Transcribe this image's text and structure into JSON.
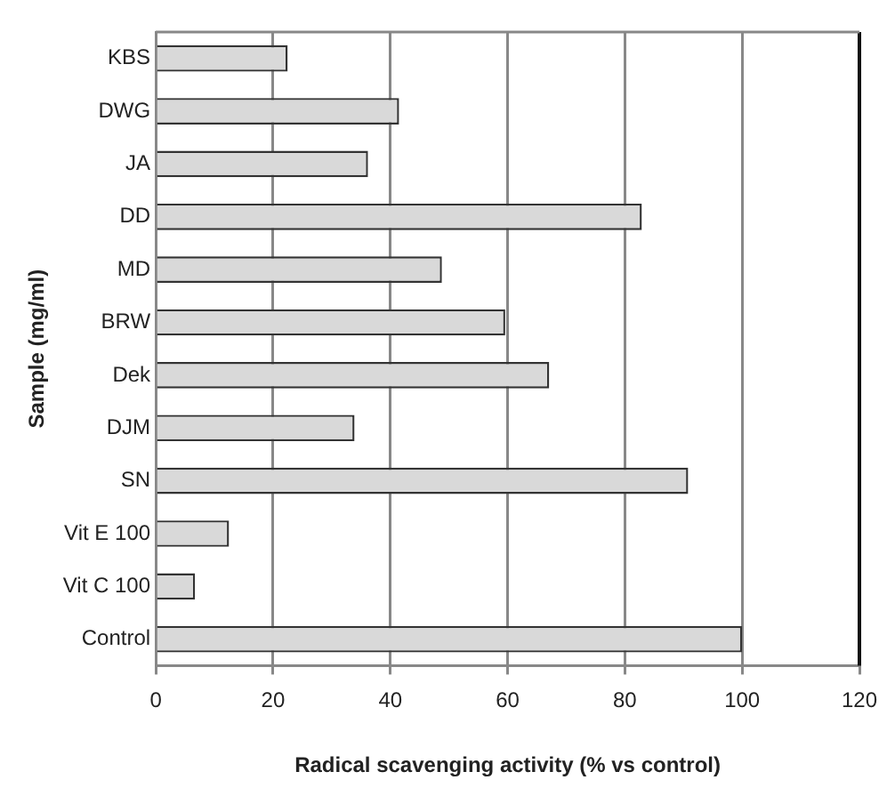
{
  "chart_data": {
    "type": "bar",
    "orientation": "horizontal",
    "xlabel": "Radical scavenging activity (% vs control)",
    "ylabel": "Sample (mg/ml)",
    "categories": [
      "KBS",
      "DWG",
      "JA",
      "DD",
      "MD",
      "BRW",
      "Dek",
      "DJM",
      "SN",
      "Vit E 100",
      "Vit C 100",
      "Control"
    ],
    "values": [
      22.5,
      41.5,
      36.2,
      82.9,
      48.8,
      59.6,
      67.1,
      33.9,
      90.8,
      12.5,
      6.7,
      100
    ],
    "color": "#d9d9d9",
    "xlim": [
      0,
      120
    ],
    "xticks": [
      0,
      20,
      40,
      60,
      80,
      100,
      120
    ],
    "grid": "x"
  }
}
